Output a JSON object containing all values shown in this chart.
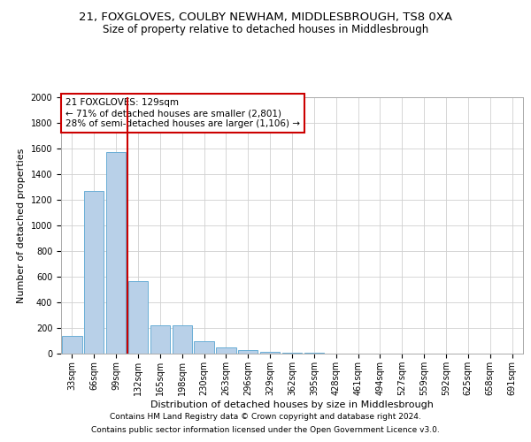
{
  "title": "21, FOXGLOVES, COULBY NEWHAM, MIDDLESBROUGH, TS8 0XA",
  "subtitle": "Size of property relative to detached houses in Middlesbrough",
  "xlabel": "Distribution of detached houses by size in Middlesbrough",
  "ylabel": "Number of detached properties",
  "categories": [
    "33sqm",
    "66sqm",
    "99sqm",
    "132sqm",
    "165sqm",
    "198sqm",
    "230sqm",
    "263sqm",
    "296sqm",
    "329sqm",
    "362sqm",
    "395sqm",
    "428sqm",
    "461sqm",
    "494sqm",
    "527sqm",
    "559sqm",
    "592sqm",
    "625sqm",
    "658sqm",
    "691sqm"
  ],
  "values": [
    140,
    1270,
    1575,
    565,
    220,
    220,
    95,
    50,
    27,
    15,
    10,
    5,
    0,
    0,
    0,
    0,
    0,
    0,
    0,
    0,
    0
  ],
  "bar_color": "#b8d0e8",
  "bar_edge_color": "#6aaed6",
  "vline_color": "#cc0000",
  "annotation_line1": "21 FOXGLOVES: 129sqm",
  "annotation_line2": "← 71% of detached houses are smaller (2,801)",
  "annotation_line3": "28% of semi-detached houses are larger (1,106) →",
  "annotation_box_color": "#ffffff",
  "annotation_box_edge_color": "#cc0000",
  "ylim": [
    0,
    2000
  ],
  "yticks": [
    0,
    200,
    400,
    600,
    800,
    1000,
    1200,
    1400,
    1600,
    1800,
    2000
  ],
  "footer_line1": "Contains HM Land Registry data © Crown copyright and database right 2024.",
  "footer_line2": "Contains public sector information licensed under the Open Government Licence v3.0.",
  "background_color": "#ffffff",
  "grid_color": "#d0d0d0",
  "title_fontsize": 9.5,
  "subtitle_fontsize": 8.5,
  "axis_label_fontsize": 8,
  "tick_fontsize": 7,
  "annotation_fontsize": 7.5,
  "footer_fontsize": 6.5
}
